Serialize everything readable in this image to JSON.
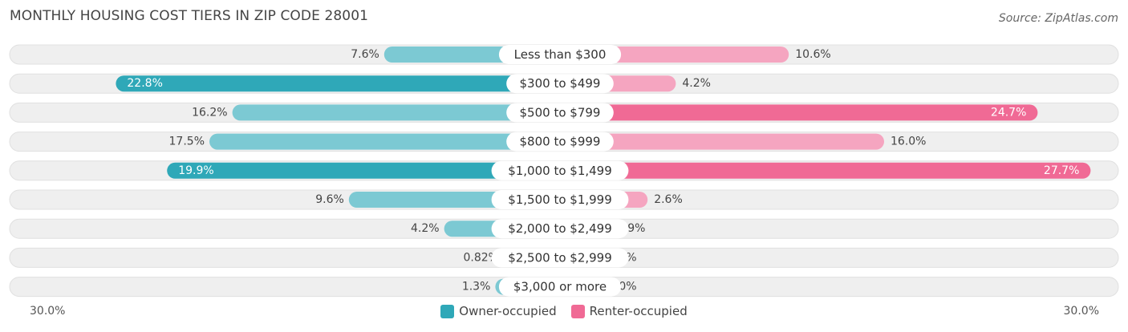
{
  "title": "MONTHLY HOUSING COST TIERS IN ZIP CODE 28001",
  "source": "Source: ZipAtlas.com",
  "colors": {
    "owner": "#2fa8b8",
    "owner_light": "#7cc9d3",
    "renter": "#f06a95",
    "renter_light": "#f5a5c0",
    "row_bg": "#efefef"
  },
  "axis": {
    "left_label": "30.0%",
    "right_label": "30.0%"
  },
  "legend": [
    {
      "label": "Owner-occupied",
      "color": "#2fa8b8"
    },
    {
      "label": "Renter-occupied",
      "color": "#f06a95"
    }
  ],
  "chart_data": {
    "type": "bar",
    "orientation": "diverging-horizontal",
    "xlim": [
      -30,
      30
    ],
    "categories": [
      "Less than $300",
      "$300 to $499",
      "$500 to $799",
      "$800 to $999",
      "$1,000 to $1,499",
      "$1,500 to $1,999",
      "$2,000 to $2,499",
      "$2,500 to $2,999",
      "$3,000 or more"
    ],
    "series": [
      {
        "name": "Owner-occupied",
        "values": [
          7.6,
          22.8,
          16.2,
          17.5,
          19.9,
          9.6,
          4.2,
          0.82,
          1.3
        ],
        "labels": [
          "7.6%",
          "22.8%",
          "16.2%",
          "17.5%",
          "19.9%",
          "9.6%",
          "4.2%",
          "0.82%",
          "1.3%"
        ]
      },
      {
        "name": "Renter-occupied",
        "values": [
          10.6,
          4.2,
          24.7,
          16.0,
          27.7,
          2.6,
          0.09,
          0.0,
          0.0
        ],
        "labels": [
          "10.6%",
          "4.2%",
          "24.7%",
          "16.0%",
          "27.7%",
          "2.6%",
          "0.09%",
          "0.0%",
          "0.0%"
        ]
      }
    ]
  }
}
